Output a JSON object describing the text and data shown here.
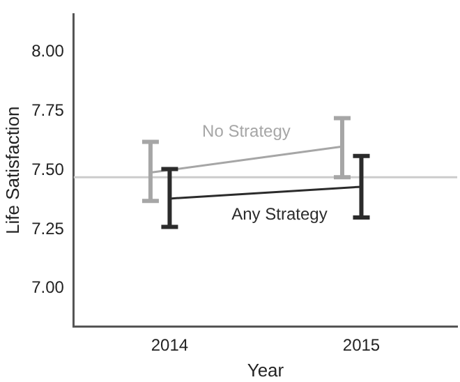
{
  "chart_data": {
    "type": "line",
    "xlabel": "Year",
    "ylabel": "Life Satisfaction",
    "xlim": [
      2013.5,
      2015.5
    ],
    "xticks": [
      2014,
      2015
    ],
    "ylim": [
      6.84,
      8.16
    ],
    "yticks": [
      {
        "value": 7,
        "label": "7.00"
      },
      {
        "value": 7.25,
        "label": "7.25"
      },
      {
        "value": 7.5,
        "label": "7.50"
      },
      {
        "value": 7.75,
        "label": "7.75"
      },
      {
        "value": 8,
        "label": "8.00"
      }
    ],
    "grid": false,
    "legend": false,
    "marker": "none",
    "line_style": "solid",
    "ref_lines": [
      {
        "axis": "y",
        "value": 7.47,
        "color": "#cccccc"
      }
    ],
    "series": [
      {
        "name": "No Strategy",
        "color": "#a6a6a6",
        "x": [
          2013.9,
          2014.9
        ],
        "values": [
          7.49,
          7.6
        ],
        "errors": [
          [
            7.37,
            7.62
          ],
          [
            7.47,
            7.72
          ]
        ]
      },
      {
        "name": "Any Strategy",
        "color": "#2b2b2b",
        "x": [
          2014,
          2015
        ],
        "values": [
          7.38,
          7.43
        ],
        "errors": [
          [
            7.26,
            7.505
          ],
          [
            7.3,
            7.56
          ]
        ]
      }
    ]
  }
}
